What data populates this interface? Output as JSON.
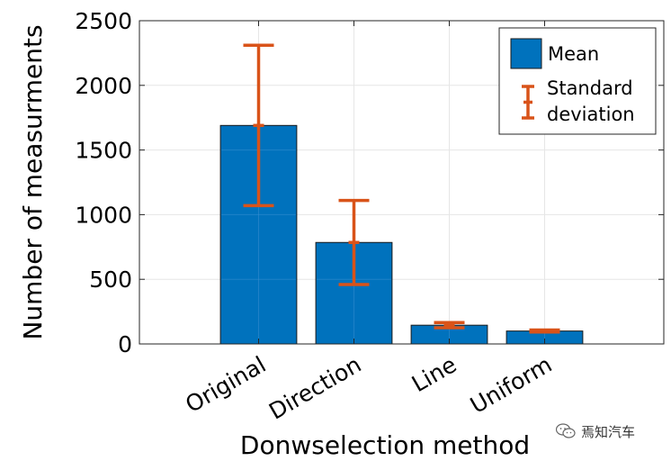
{
  "chart_data": {
    "type": "bar",
    "categories": [
      "Original",
      "Direction",
      "Line",
      "Uniform"
    ],
    "series": [
      {
        "name": "Mean",
        "values": [
          1690,
          785,
          145,
          100
        ],
        "error": [
          620,
          325,
          20,
          8
        ]
      }
    ],
    "error_label": "Standard deviation",
    "title": "",
    "xlabel": "Donwselection method",
    "ylabel": "Number of measurments",
    "ylim": [
      0,
      2500
    ],
    "yticks": [
      0,
      500,
      1000,
      1500,
      2000,
      2500
    ],
    "grid": true,
    "legend_position": "top-right",
    "colors": {
      "bar": "#0072BD",
      "error": "#D95319"
    }
  },
  "watermark": {
    "text": "焉知汽车",
    "icon": "wechat-icon"
  }
}
